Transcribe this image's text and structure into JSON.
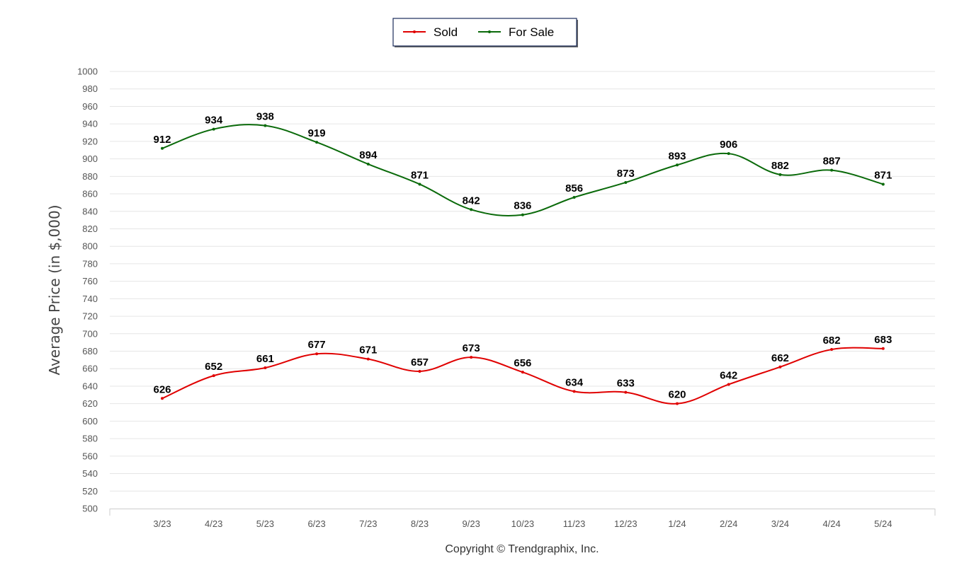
{
  "chart_data": {
    "type": "line",
    "categories": [
      "3/23",
      "4/23",
      "5/23",
      "6/23",
      "7/23",
      "8/23",
      "9/23",
      "10/23",
      "11/23",
      "12/23",
      "1/24",
      "2/24",
      "3/24",
      "4/24",
      "5/24"
    ],
    "series": [
      {
        "name": "Sold",
        "color": "#e00000",
        "values": [
          626,
          652,
          661,
          677,
          671,
          657,
          673,
          656,
          634,
          633,
          620,
          642,
          662,
          682,
          683
        ]
      },
      {
        "name": "For Sale",
        "color": "#0a6a0a",
        "values": [
          912,
          934,
          938,
          919,
          894,
          871,
          842,
          836,
          856,
          873,
          893,
          906,
          882,
          887,
          871
        ]
      }
    ],
    "ylabel": "Average Price (in $,000)",
    "ylim": [
      500,
      1000
    ],
    "ytick_step": 20,
    "grid": true,
    "legend": "top-center",
    "smooth": true
  },
  "footer": {
    "copyright": "Copyright © Trendgraphix, Inc."
  }
}
